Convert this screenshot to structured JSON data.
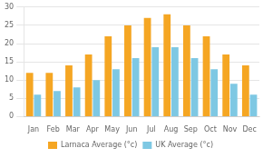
{
  "chart_data": {
    "type": "bar",
    "categories": [
      "Jan",
      "Feb",
      "Mar",
      "Apr",
      "May",
      "Jun",
      "Jul",
      "Aug",
      "Sep",
      "Oct",
      "Nov",
      "Dec"
    ],
    "series": [
      {
        "name": "Larnaca Average (°c)",
        "color": "#F5A623",
        "values": [
          12,
          12,
          14,
          17,
          22,
          25,
          27,
          28,
          25,
          22,
          17,
          14
        ]
      },
      {
        "name": "UK Average (°c)",
        "color": "#7EC8E3",
        "values": [
          6,
          7,
          8,
          10,
          13,
          16,
          19,
          19,
          16,
          13,
          9,
          6
        ]
      }
    ],
    "ylim": [
      0,
      30
    ],
    "yticks": [
      0,
      5,
      10,
      15,
      20,
      25,
      30
    ],
    "grid": true,
    "legend": "bottom"
  }
}
